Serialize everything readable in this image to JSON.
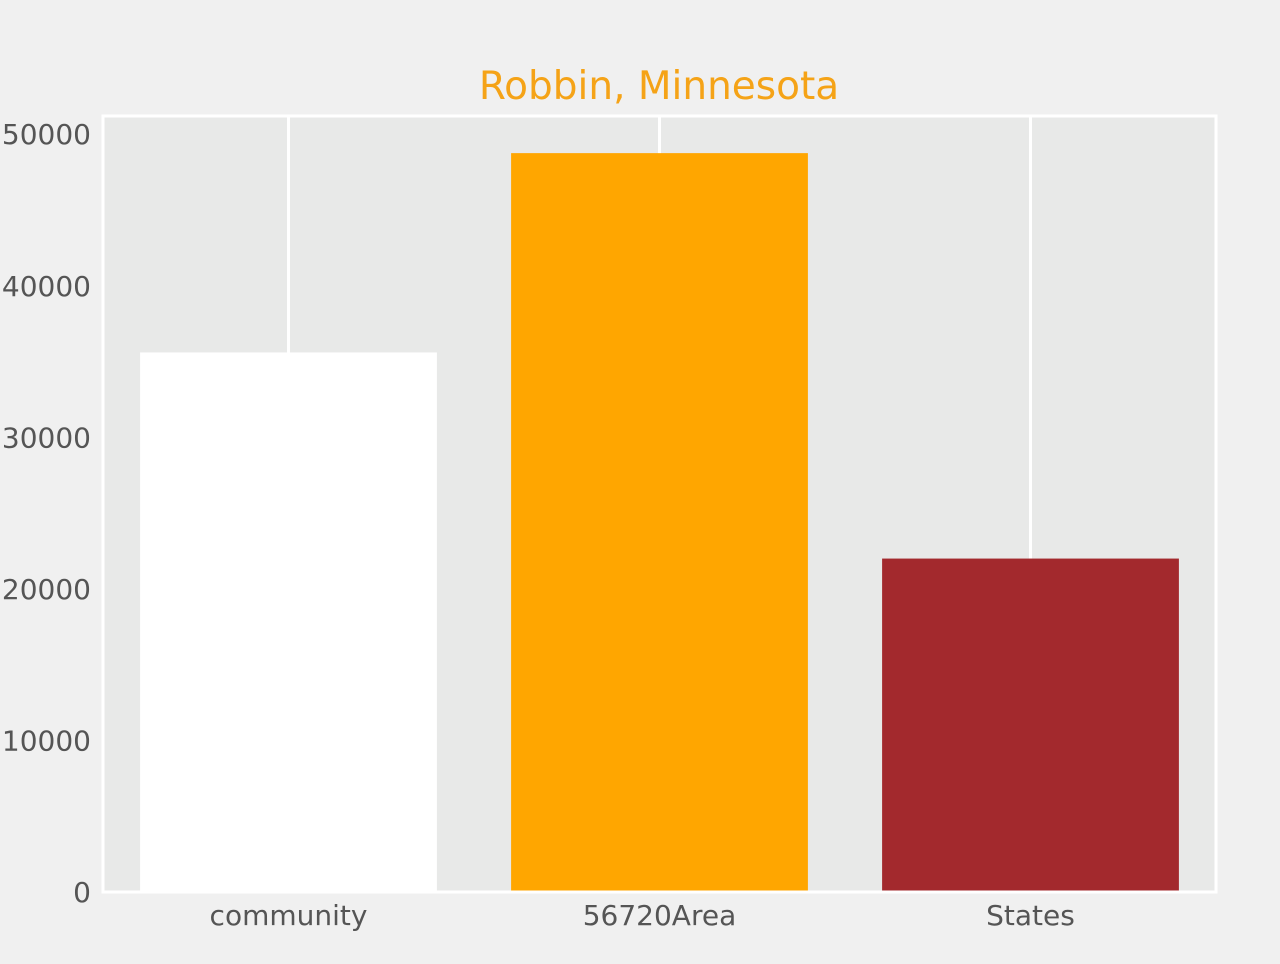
{
  "chart_data": {
    "type": "bar",
    "title": "Robbin, Minnesota",
    "xlabel": "",
    "ylabel": "",
    "categories": [
      "community",
      "56720Area",
      "States"
    ],
    "values": [
      35600,
      48750,
      22000
    ],
    "ylim": [
      0,
      51200
    ],
    "yticks": [
      0,
      10000,
      20000,
      30000,
      40000,
      50000
    ],
    "grid": "vertical",
    "legend": "none",
    "colors": {
      "title": "#f5a317",
      "background": "#f0f0f0",
      "plot_background": "#e8e9e8",
      "grid": "#ffffff",
      "tick_label": "#555555",
      "bars": [
        "#ffffff",
        "#ffa600",
        "#a3292d"
      ]
    }
  }
}
